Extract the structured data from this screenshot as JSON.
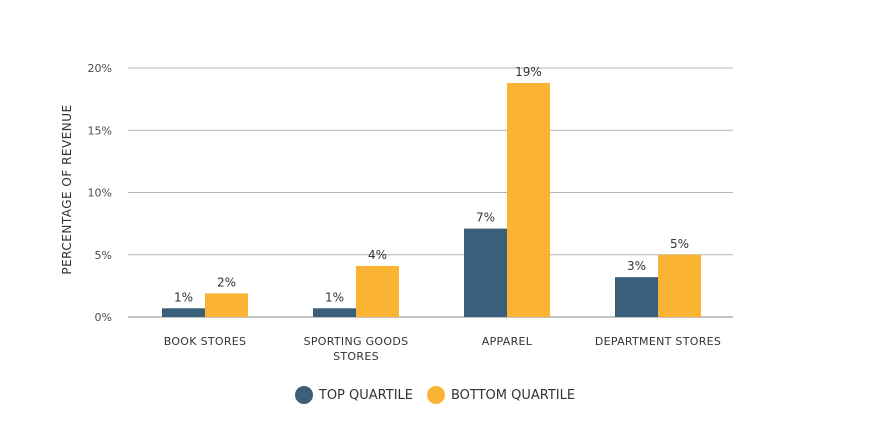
{
  "chart_data": {
    "type": "bar",
    "ylabel": "PERCENTAGE OF REVENUE",
    "ylim": [
      0,
      20
    ],
    "yticks": [
      0,
      5,
      10,
      15,
      20
    ],
    "ytick_labels": [
      "0%",
      "5%",
      "10%",
      "15%",
      "20%"
    ],
    "categories": [
      [
        "BOOK STORES"
      ],
      [
        "SPORTING GOODS",
        "STORES"
      ],
      [
        "APPAREL"
      ],
      [
        "DEPARTMENT STORES"
      ]
    ],
    "series": [
      {
        "name": "TOP QUARTILE",
        "color": "#3a5f7a",
        "values": [
          0.7,
          0.7,
          7.1,
          3.2
        ],
        "labels": [
          "1%",
          "1%",
          "7%",
          "3%"
        ]
      },
      {
        "name": "BOTTOM QUARTILE",
        "color": "#fbb334",
        "values": [
          1.9,
          4.1,
          18.8,
          5.0
        ],
        "labels": [
          "2%",
          "4%",
          "19%",
          "5%"
        ]
      }
    ],
    "grid": true,
    "legend_position": "bottom"
  }
}
